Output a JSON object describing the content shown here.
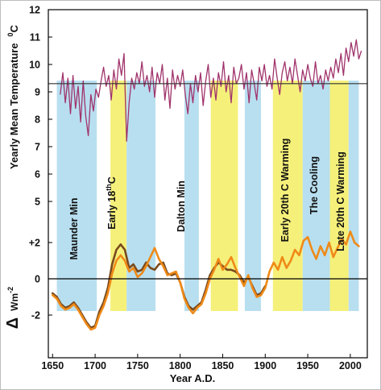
{
  "chart_data": {
    "type": "line",
    "xlabel": "Year A.D.",
    "xlim": [
      1645,
      2020
    ],
    "x_ticks": [
      "1650",
      "1700",
      "1750",
      "1800",
      "1850",
      "1900",
      "1950",
      "2000"
    ],
    "top_panel": {
      "ylabel": "Yearly Mean Temperature",
      "ylabel_unit": "0C",
      "ylim": [
        5,
        12
      ],
      "y_ticks": [
        "5",
        "6",
        "7",
        "8",
        "9",
        "10",
        "11",
        "12"
      ],
      "reference_line": 9.3,
      "series": [
        {
          "color": "#a0336b",
          "x": [
            1659,
            1662,
            1665,
            1668,
            1671,
            1674,
            1677,
            1680,
            1683,
            1686,
            1689,
            1692,
            1695,
            1698,
            1701,
            1704,
            1707,
            1710,
            1713,
            1716,
            1719,
            1722,
            1725,
            1728,
            1731,
            1734,
            1737,
            1740,
            1743,
            1746,
            1749,
            1752,
            1755,
            1758,
            1761,
            1764,
            1767,
            1770,
            1773,
            1776,
            1779,
            1782,
            1785,
            1788,
            1791,
            1794,
            1797,
            1800,
            1803,
            1806,
            1809,
            1812,
            1815,
            1818,
            1821,
            1824,
            1827,
            1830,
            1833,
            1836,
            1839,
            1842,
            1845,
            1848,
            1851,
            1854,
            1857,
            1860,
            1863,
            1866,
            1869,
            1872,
            1875,
            1878,
            1881,
            1884,
            1887,
            1890,
            1893,
            1896,
            1899,
            1902,
            1905,
            1908,
            1911,
            1914,
            1917,
            1920,
            1923,
            1926,
            1929,
            1932,
            1935,
            1938,
            1941,
            1944,
            1947,
            1950,
            1953,
            1956,
            1959,
            1962,
            1965,
            1968,
            1971,
            1974,
            1977,
            1980,
            1983,
            1986,
            1989,
            1992,
            1995,
            1998,
            2001,
            2004,
            2007,
            2010,
            2013
          ],
          "values": [
            8.9,
            9.7,
            8.6,
            9.5,
            8.2,
            9.6,
            8.4,
            9.2,
            7.9,
            9.4,
            8.1,
            7.4,
            8.9,
            8.3,
            9.1,
            8.8,
            9.4,
            9.9,
            9.2,
            9.6,
            8.7,
            9.8,
            9.1,
            10.2,
            9.6,
            10.4,
            7.2,
            8.6,
            9.5,
            9.1,
            9.7,
            9.3,
            10.1,
            9.2,
            9.6,
            9.0,
            9.9,
            8.8,
            9.7,
            9.3,
            10.0,
            8.7,
            9.5,
            8.4,
            9.8,
            9.1,
            9.6,
            9.2,
            9.8,
            8.9,
            8.2,
            9.3,
            8.6,
            9.6,
            9.0,
            9.7,
            8.5,
            9.4,
            10.0,
            8.8,
            9.5,
            8.7,
            9.7,
            9.2,
            10.1,
            9.0,
            9.6,
            8.6,
            9.9,
            9.3,
            9.5,
            10.0,
            9.1,
            9.7,
            8.6,
            9.8,
            9.3,
            8.7,
            9.9,
            9.4,
            10.0,
            9.2,
            9.6,
            9.1,
            10.2,
            9.5,
            8.9,
            9.7,
            10.1,
            9.4,
            9.9,
            9.3,
            10.2,
            9.6,
            9.0,
            9.8,
            9.4,
            10.0,
            9.5,
            9.2,
            10.1,
            9.3,
            9.6,
            9.1,
            9.8,
            9.4,
            9.9,
            9.5,
            10.2,
            9.7,
            10.4,
            9.6,
            10.6,
            10.1,
            10.8,
            10.3,
            10.9,
            10.2,
            10.5
          ]
        }
      ]
    },
    "bottom_panel": {
      "ylabel": "Δ Wm-2",
      "ylim": [
        -3.2,
        2.5
      ],
      "y_ticks": [
        "+2",
        "0",
        "-2"
      ],
      "reference_line": 0,
      "series": [
        {
          "color": "#7a4a1e",
          "x": [
            1650,
            1655,
            1660,
            1665,
            1670,
            1675,
            1680,
            1685,
            1690,
            1695,
            1700,
            1705,
            1710,
            1715,
            1720,
            1725,
            1730,
            1735,
            1740,
            1745,
            1750,
            1755,
            1760,
            1765,
            1770,
            1775,
            1780,
            1785,
            1790,
            1795,
            1800,
            1805,
            1810,
            1815,
            1820,
            1825,
            1830,
            1835,
            1840,
            1845,
            1850,
            1855,
            1860,
            1865,
            1870,
            1875,
            1880,
            1885,
            1890,
            1895,
            1900
          ],
          "values": [
            -0.8,
            -1.0,
            -1.4,
            -1.6,
            -1.5,
            -1.3,
            -1.6,
            -2.0,
            -2.4,
            -2.7,
            -2.6,
            -1.8,
            -1.3,
            -0.5,
            0.8,
            1.6,
            1.9,
            1.6,
            0.6,
            0.8,
            0.4,
            0.5,
            0.9,
            0.6,
            0.5,
            0.8,
            0.9,
            0.3,
            0.2,
            0.3,
            -0.2,
            -1.0,
            -1.5,
            -1.7,
            -1.5,
            -1.3,
            -0.6,
            0.2,
            0.6,
            0.9,
            0.7,
            0.5,
            0.5,
            0.4,
            0.2,
            -0.2,
            0.1,
            -0.4,
            -0.9,
            -0.8,
            -0.4
          ]
        },
        {
          "color": "#ef8a18",
          "x": [
            1650,
            1655,
            1660,
            1665,
            1670,
            1675,
            1680,
            1685,
            1690,
            1695,
            1700,
            1705,
            1710,
            1715,
            1720,
            1725,
            1730,
            1735,
            1740,
            1745,
            1750,
            1755,
            1760,
            1765,
            1770,
            1775,
            1780,
            1785,
            1790,
            1795,
            1800,
            1805,
            1810,
            1815,
            1820,
            1825,
            1830,
            1835,
            1840,
            1845,
            1850,
            1855,
            1860,
            1865,
            1870,
            1875,
            1880,
            1885,
            1890,
            1895,
            1900,
            1905,
            1910,
            1915,
            1920,
            1925,
            1930,
            1935,
            1940,
            1945,
            1950,
            1955,
            1960,
            1965,
            1970,
            1975,
            1980,
            1985,
            1990,
            1995,
            2000,
            2005,
            2010
          ],
          "values": [
            -0.9,
            -1.1,
            -1.5,
            -1.7,
            -1.6,
            -1.4,
            -1.7,
            -2.1,
            -2.5,
            -2.8,
            -2.7,
            -2.0,
            -1.5,
            -0.8,
            0.3,
            1.0,
            1.3,
            1.0,
            0.4,
            0.6,
            0.1,
            0.3,
            0.7,
            1.2,
            1.7,
            1.1,
            0.7,
            0.2,
            0.3,
            0.4,
            -0.2,
            -1.1,
            -1.6,
            -1.9,
            -1.6,
            -1.4,
            -0.8,
            0.0,
            0.5,
            1.1,
            0.5,
            0.8,
            1.2,
            0.6,
            0.1,
            -0.4,
            0.2,
            -0.5,
            -1.0,
            -0.9,
            -0.5,
            0.4,
            0.9,
            0.5,
            1.2,
            0.6,
            1.0,
            1.6,
            1.3,
            2.1,
            2.3,
            1.6,
            1.1,
            1.8,
            1.3,
            2.0,
            1.2,
            1.7,
            2.2,
            1.9,
            2.6,
            2.0,
            1.8
          ]
        }
      ]
    },
    "bands": [
      {
        "label": "Maunder Min",
        "x0": 1655,
        "x1": 1702,
        "color": "#b8dff0"
      },
      {
        "label": "Early 18thC",
        "label_main": "Early 18",
        "label_sup": "th",
        "label_tail": "C",
        "x0": 1718,
        "x1": 1737,
        "color": "#f5f07a"
      },
      {
        "label": "",
        "x0": 1737,
        "x1": 1771,
        "color": "#b8dff0"
      },
      {
        "label": "Dalton Min",
        "x0": 1805,
        "x1": 1822,
        "color": "#b8dff0"
      },
      {
        "label": "",
        "x0": 1836,
        "x1": 1868,
        "color": "#f5f07a"
      },
      {
        "label": "",
        "x0": 1876,
        "x1": 1895,
        "color": "#b8dff0"
      },
      {
        "label": "Early 20th C Warming",
        "x0": 1909,
        "x1": 1944,
        "color": "#f5f07a"
      },
      {
        "label": "The Cooling",
        "x0": 1944,
        "x1": 1976,
        "color": "#b8dff0"
      },
      {
        "label": "Late 20th C Warming",
        "x0": 1976,
        "x1": 1998,
        "color": "#f5f07a"
      },
      {
        "label": "",
        "x0": 1998,
        "x1": 2010,
        "color": "#b8dff0"
      }
    ]
  }
}
